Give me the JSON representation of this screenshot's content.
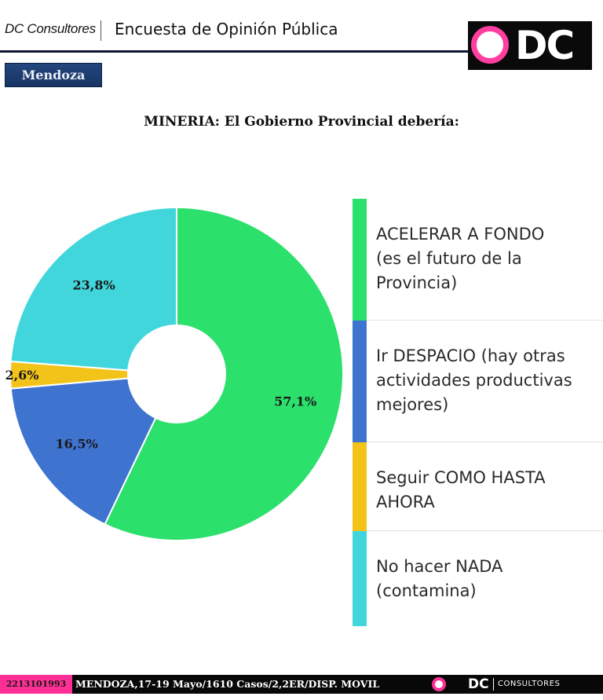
{
  "header": {
    "brand": "DC Consultores",
    "title": "Encuesta de Opinión Pública",
    "logo_text": "DC",
    "region": "Mendoza"
  },
  "chart_data": {
    "type": "pie",
    "title": "MINERIA: El Gobierno Provincial debería:",
    "series": [
      {
        "label_lines": [
          "ACELERAR A FONDO",
          "(es el futuro de la",
          "Provincia)"
        ],
        "value": 57.1,
        "display": "57,1%",
        "color": "#2be06b"
      },
      {
        "label_lines": [
          "Ir DESPACIO (hay otras",
          "actividades productivas",
          "mejores)"
        ],
        "value": 16.5,
        "display": "16,5%",
        "color": "#3f73d0"
      },
      {
        "label_lines": [
          "Seguir COMO HASTA",
          "AHORA"
        ],
        "value": 2.6,
        "display": "2,6%",
        "color": "#f2c41a"
      },
      {
        "label_lines": [
          "No hacer NADA",
          "(contamina)"
        ],
        "value": 23.8,
        "display": "23,8%",
        "color": "#40d6dc"
      }
    ]
  },
  "footer": {
    "phone": "2213101993",
    "info": "MENDOZA,17-19 Mayo/1610 Casos/2,2ER/DISP. MOVIL",
    "brand_dc": "DC",
    "brand_consultores": "CONSULTORES"
  }
}
